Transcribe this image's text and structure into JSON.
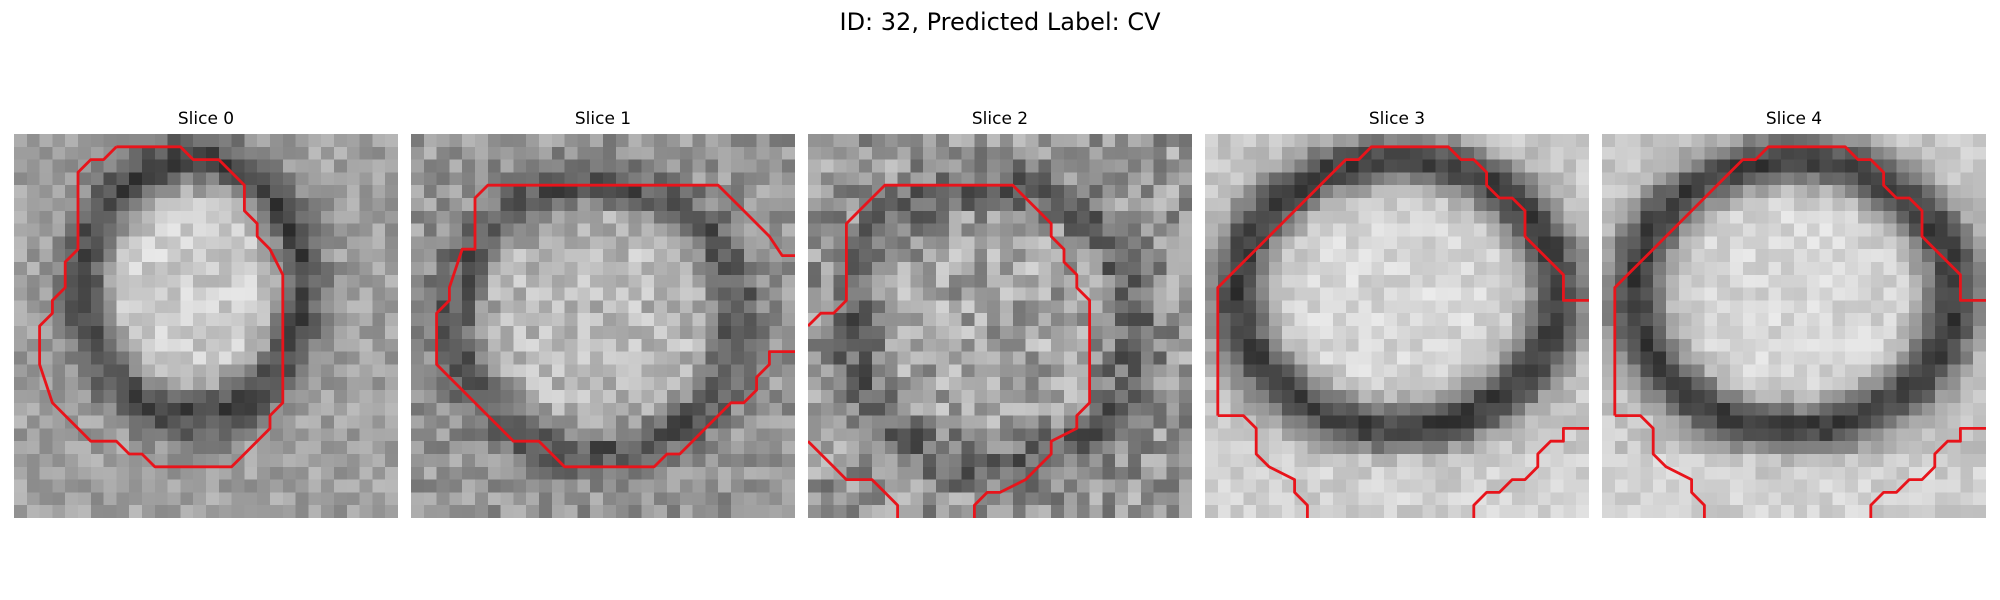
{
  "figure": {
    "title": "ID: 32, Predicted Label: CV",
    "contour_color": "#e8141b"
  },
  "panels": [
    {
      "title": "Slice 0"
    },
    {
      "title": "Slice 1"
    },
    {
      "title": "Slice 2"
    },
    {
      "title": "Slice 3"
    },
    {
      "title": "Slice 4"
    }
  ]
}
